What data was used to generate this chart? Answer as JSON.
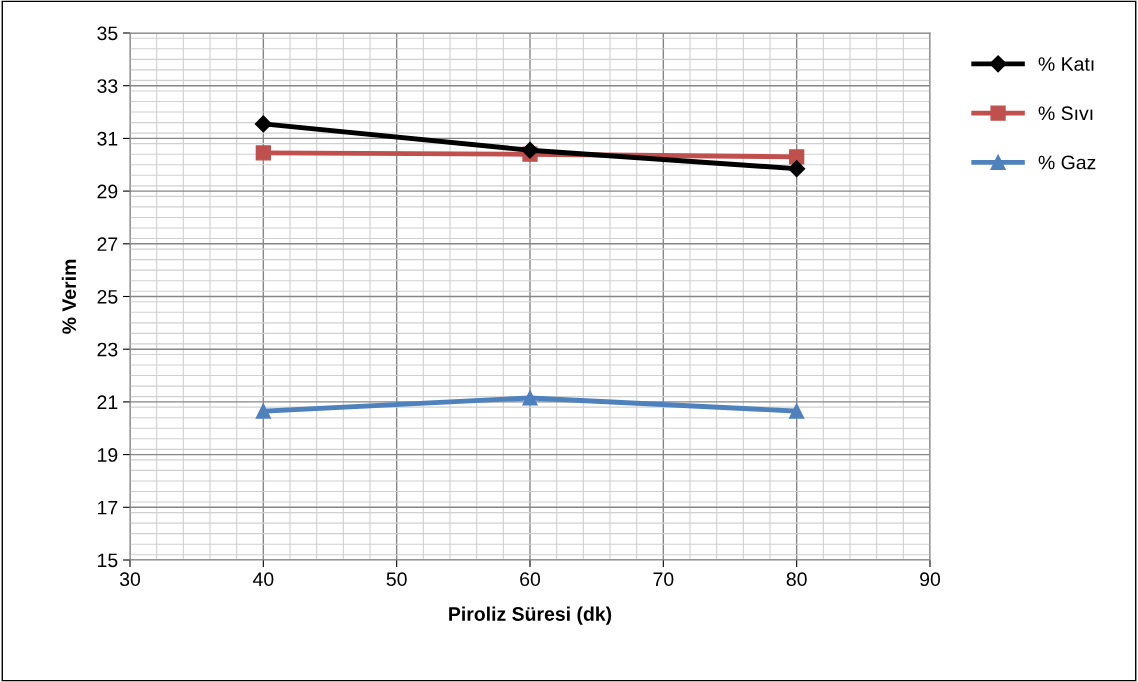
{
  "chart_data": {
    "type": "line",
    "xlabel": "Piroliz Süresi (dk)",
    "ylabel": "% Verim",
    "x": [
      40,
      60,
      80
    ],
    "series": [
      {
        "name": "% Katı",
        "color": "#000000",
        "marker": "diamond",
        "values": [
          31.55,
          30.55,
          29.85
        ]
      },
      {
        "name": "% Sıvı",
        "color": "#c0504d",
        "marker": "square",
        "values": [
          30.45,
          30.4,
          30.3
        ]
      },
      {
        "name": "% Gaz",
        "color": "#4f81bd",
        "marker": "triangle",
        "values": [
          20.65,
          21.15,
          20.65
        ]
      }
    ],
    "xlim": [
      30,
      90
    ],
    "xticks": [
      30,
      40,
      50,
      60,
      70,
      80,
      90
    ],
    "ylim": [
      15,
      35
    ],
    "yticks": [
      15,
      17,
      19,
      21,
      23,
      25,
      27,
      29,
      31,
      33,
      35
    ],
    "grid": true,
    "legend": "right",
    "line_style": "solid"
  }
}
